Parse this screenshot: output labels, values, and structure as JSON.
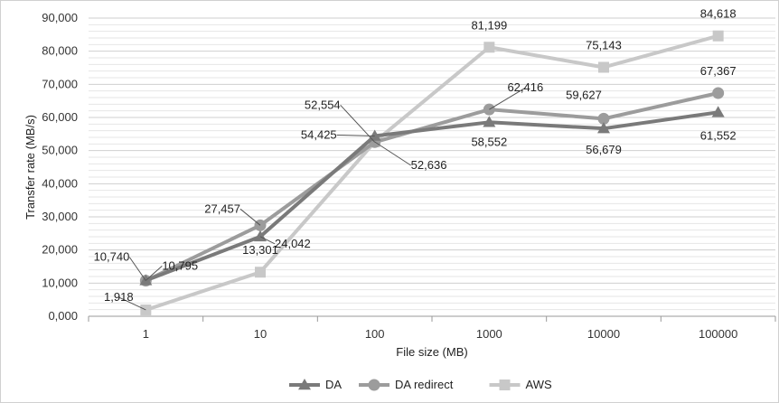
{
  "chart_data": {
    "type": "line",
    "title": "",
    "xlabel": "File size (MB)",
    "ylabel": "Transfer rate (MB/s)",
    "categories": [
      "1",
      "10",
      "100",
      "1000",
      "10000",
      "100000"
    ],
    "ylim": [
      0,
      90000
    ],
    "y_ticks": [
      "0,000",
      "10,000",
      "20,000",
      "30,000",
      "40,000",
      "50,000",
      "60,000",
      "70,000",
      "80,000",
      "90,000"
    ],
    "grid": true,
    "legend_position": "bottom",
    "series": [
      {
        "name": "DA",
        "marker": "triangle",
        "color": "#7a7a7a",
        "values": [
          10795,
          24042,
          54425,
          58552,
          56679,
          61552
        ],
        "labels": [
          "10,795",
          "24,042",
          "54,425",
          "58,552",
          "56,679",
          "61,552"
        ]
      },
      {
        "name": "DA redirect",
        "marker": "circle",
        "color": "#9c9c9c",
        "values": [
          10740,
          27457,
          52554,
          62416,
          59627,
          67367
        ],
        "labels": [
          "10,740",
          "27,457",
          "52,554",
          "62,416",
          "59,627",
          "67,367"
        ]
      },
      {
        "name": "AWS",
        "marker": "square",
        "color": "#c8c8c8",
        "values": [
          1918,
          13301,
          52636,
          81199,
          75143,
          84618
        ],
        "labels": [
          "1,918",
          "13,301",
          "52,636",
          "81,199",
          "75,143",
          "84,618"
        ]
      }
    ]
  }
}
